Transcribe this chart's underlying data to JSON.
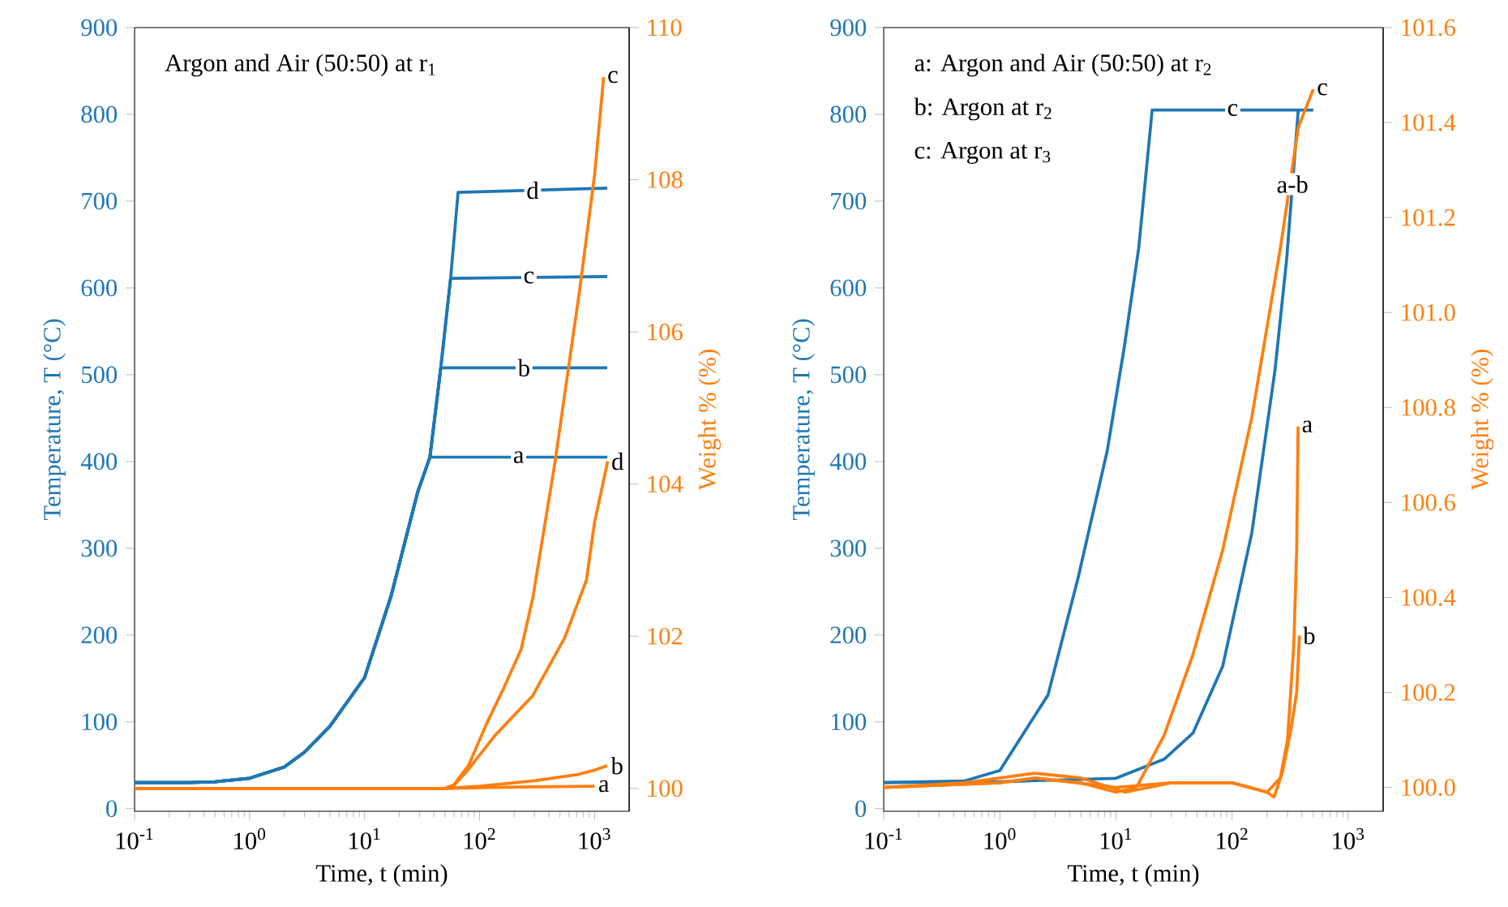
{
  "chart_data": [
    {
      "type": "line",
      "xlabel": "Time, t (min)",
      "ylabel": "Temperature, T (°C)",
      "y2label": "Weight % (%)",
      "log": "x",
      "xlim": [
        0.1,
        2000
      ],
      "xticks": [
        {
          "value": 0.1,
          "label": "10$^{-1}$"
        },
        {
          "value": 1,
          "label": "10$^{0}$"
        },
        {
          "value": 10,
          "label": "10$^{1}$"
        },
        {
          "value": 100,
          "label": "10$^{2}$"
        },
        {
          "value": 1000,
          "label": "10$^{3}$"
        }
      ],
      "ylim": [
        -3,
        900
      ],
      "yticks": [
        0,
        100,
        200,
        300,
        400,
        500,
        600,
        700,
        800,
        900
      ],
      "y2lim": [
        99.7,
        110
      ],
      "y2ticks": [
        100,
        102,
        104,
        106,
        108,
        110
      ],
      "annotations": [
        "Argon and Air (50:50) at r$_{1}$"
      ],
      "series": [
        {
          "name": "a",
          "color": "#1f77b4",
          "axis": "y",
          "x": [
            0.1,
            0.3,
            0.5,
            1,
            2,
            3,
            5,
            10,
            17,
            29,
            37,
            1290
          ],
          "values": [
            30,
            30,
            31,
            35,
            48,
            65,
            95,
            151,
            245,
            365,
            405,
            405
          ]
        },
        {
          "name": "b",
          "color": "#1f77b4",
          "axis": "y",
          "x": [
            0.1,
            0.3,
            0.5,
            1,
            2,
            3,
            5,
            10,
            17,
            29,
            37,
            46,
            1290
          ],
          "values": [
            30,
            30,
            31,
            35,
            48,
            65,
            95,
            151,
            245,
            365,
            405,
            508,
            508
          ]
        },
        {
          "name": "c",
          "color": "#1f77b4",
          "axis": "y",
          "x": [
            0.1,
            0.3,
            0.5,
            1,
            2,
            3,
            5,
            10,
            17,
            29,
            37,
            46,
            56,
            1290
          ],
          "values": [
            30,
            30,
            31,
            35,
            48,
            65,
            95,
            151,
            245,
            365,
            405,
            508,
            611,
            613
          ]
        },
        {
          "name": "d",
          "color": "#1f77b4",
          "axis": "y",
          "x": [
            0.1,
            0.3,
            0.5,
            1,
            2,
            3,
            5,
            10,
            17,
            29,
            37,
            46,
            56,
            65,
            1290
          ],
          "values": [
            30,
            30,
            31,
            35,
            48,
            65,
            95,
            151,
            245,
            365,
            405,
            508,
            611,
            710,
            715
          ]
        },
        {
          "name": "a",
          "color": "#ff7f0e",
          "axis": "y2",
          "x": [
            0.1,
            1,
            10,
            50,
            100,
            300,
            1000
          ],
          "values": [
            100,
            100,
            100,
            100,
            100.01,
            100.02,
            100.03
          ]
        },
        {
          "name": "b",
          "color": "#ff7f0e",
          "axis": "y2",
          "x": [
            0.1,
            1,
            10,
            50,
            100,
            300,
            700,
            1000,
            1290
          ],
          "values": [
            100,
            100,
            100,
            100,
            100.03,
            100.1,
            100.18,
            100.24,
            100.3
          ]
        },
        {
          "name": "c",
          "color": "#ff7f0e",
          "axis": "y2",
          "x": [
            0.1,
            1,
            10,
            50,
            60,
            80,
            115,
            160,
            230,
            290,
            450,
            740,
            1000,
            1200
          ],
          "values": [
            100,
            100,
            100,
            100,
            100.05,
            100.3,
            100.85,
            101.3,
            101.83,
            102.5,
            104.26,
            106.54,
            108.06,
            109.35
          ]
        },
        {
          "name": "d",
          "color": "#ff7f0e",
          "axis": "y2",
          "x": [
            0.1,
            1,
            10,
            50,
            60,
            80,
            135,
            290,
            550,
            850,
            1000,
            1180,
            1300
          ],
          "values": [
            100,
            100,
            100,
            100,
            100.04,
            100.25,
            100.69,
            101.22,
            101.98,
            102.74,
            103.5,
            104.0,
            104.3
          ]
        }
      ]
    },
    {
      "type": "line",
      "xlabel": "Time, t (min)",
      "ylabel": "Temperature, T (°C)",
      "y2label": "Weight % (%)",
      "log": "x",
      "xlim": [
        0.1,
        2000
      ],
      "xticks": [
        {
          "value": 0.1,
          "label": "10$^{-1}$"
        },
        {
          "value": 1,
          "label": "10$^{0}$"
        },
        {
          "value": 10,
          "label": "10$^{1}$"
        },
        {
          "value": 100,
          "label": "10$^{2}$"
        },
        {
          "value": 1000,
          "label": "10$^{3}$"
        }
      ],
      "ylim": [
        -3,
        900
      ],
      "yticks": [
        0,
        100,
        200,
        300,
        400,
        500,
        600,
        700,
        800,
        900
      ],
      "y2lim": [
        99.95,
        101.6
      ],
      "y2ticks": [
        {
          "value": 100.0,
          "label": "100.0"
        },
        {
          "value": 100.2,
          "label": "100.2"
        },
        {
          "value": 100.4,
          "label": "100.4"
        },
        {
          "value": 100.6,
          "label": "100.6"
        },
        {
          "value": 100.8,
          "label": "100.8"
        },
        {
          "value": 101.0,
          "label": "101.0"
        },
        {
          "value": 101.2,
          "label": "101.2"
        },
        {
          "value": 101.4,
          "label": "101.4"
        },
        {
          "value": 101.6,
          "label": "101.6"
        }
      ],
      "annotations": [
        "a: Argon and Air (50:50) at r$_{2}$",
        "b: Argon at r$_{2}$",
        "c: Argon at r$_{3}$"
      ],
      "series": [
        {
          "name": "c",
          "color": "#1f77b4",
          "axis": "y",
          "x": [
            0.1,
            0.5,
            1,
            2.6,
            4.7,
            8.4,
            11.8,
            15.7,
            20.5,
            500
          ],
          "values": [
            30,
            32,
            44,
            131,
            265,
            412,
            532,
            646,
            805,
            805
          ]
        },
        {
          "name": "a-b",
          "color": "#1f77b4",
          "axis": "y",
          "x": [
            0.1,
            1,
            10,
            26,
            46,
            83,
            148,
            234,
            295,
            372
          ],
          "values": [
            30,
            31,
            35,
            57,
            87,
            164,
            318,
            505,
            633,
            806
          ]
        },
        {
          "name": "c",
          "color": "#ff7f0e",
          "axis": "y2",
          "x": [
            0.1,
            1,
            2,
            5,
            10,
            15,
            26,
            46,
            83,
            148,
            262,
            372,
            500
          ],
          "values": [
            100,
            100.01,
            100.02,
            100.01,
            99.99,
            100.0,
            100.11,
            100.28,
            100.5,
            100.78,
            101.14,
            101.39,
            101.47
          ]
        },
        {
          "name": "a",
          "color": "#ff7f0e",
          "axis": "y2",
          "x": [
            0.1,
            0.5,
            2,
            5,
            12,
            30,
            100,
            200,
            260,
            300,
            340,
            360,
            370
          ],
          "values": [
            100.0,
            100.01,
            100.03,
            100.02,
            99.99,
            100.01,
            100.01,
            99.99,
            100.02,
            100.1,
            100.3,
            100.5,
            100.76
          ]
        },
        {
          "name": "b",
          "color": "#ff7f0e",
          "axis": "y2",
          "x": [
            0.1,
            1,
            2,
            10,
            30,
            100,
            200,
            230,
            270,
            320,
            360,
            380
          ],
          "values": [
            100,
            100.01,
            100.02,
            100.0,
            100.01,
            100.01,
            99.99,
            99.98,
            100.03,
            100.12,
            100.2,
            100.32
          ]
        }
      ]
    }
  ]
}
